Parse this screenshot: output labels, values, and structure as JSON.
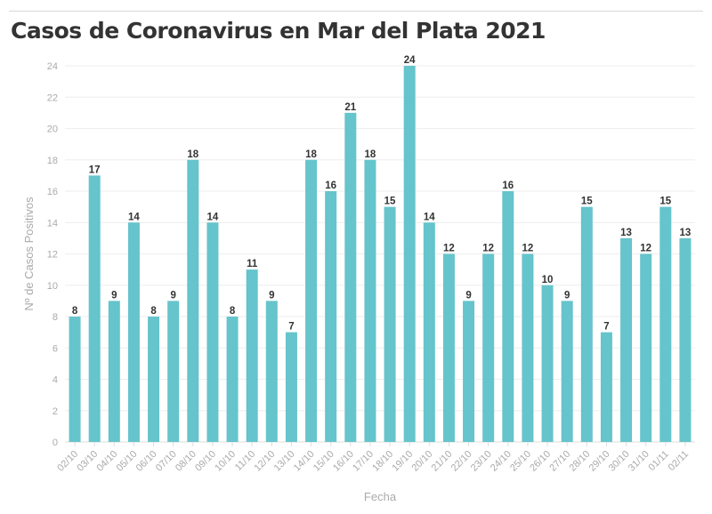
{
  "title": "Casos de Coronavirus en Mar del Plata 2021",
  "chart_data": {
    "type": "bar",
    "title": "Casos de Coronavirus en Mar del Plata 2021",
    "xlabel": "Fecha",
    "ylabel": "Nº de Casos Positivos",
    "ylim": [
      0,
      24
    ],
    "yticks": [
      0,
      2,
      4,
      6,
      8,
      10,
      12,
      14,
      16,
      18,
      20,
      22,
      24
    ],
    "grid": true,
    "bar_color": "#65c4cc",
    "categories": [
      "02/10",
      "03/10",
      "04/10",
      "05/10",
      "06/10",
      "07/10",
      "08/10",
      "09/10",
      "10/10",
      "11/10",
      "12/10",
      "13/10",
      "14/10",
      "15/10",
      "16/10",
      "17/10",
      "18/10",
      "19/10",
      "20/10",
      "21/10",
      "22/10",
      "23/10",
      "24/10",
      "25/10",
      "26/10",
      "27/10",
      "28/10",
      "29/10",
      "30/10",
      "31/10",
      "01/11",
      "02/11"
    ],
    "values": [
      8,
      17,
      9,
      14,
      8,
      9,
      18,
      14,
      8,
      11,
      9,
      7,
      18,
      16,
      21,
      18,
      15,
      24,
      14,
      12,
      9,
      12,
      16,
      12,
      10,
      9,
      15,
      7,
      13,
      12,
      15,
      13
    ]
  }
}
